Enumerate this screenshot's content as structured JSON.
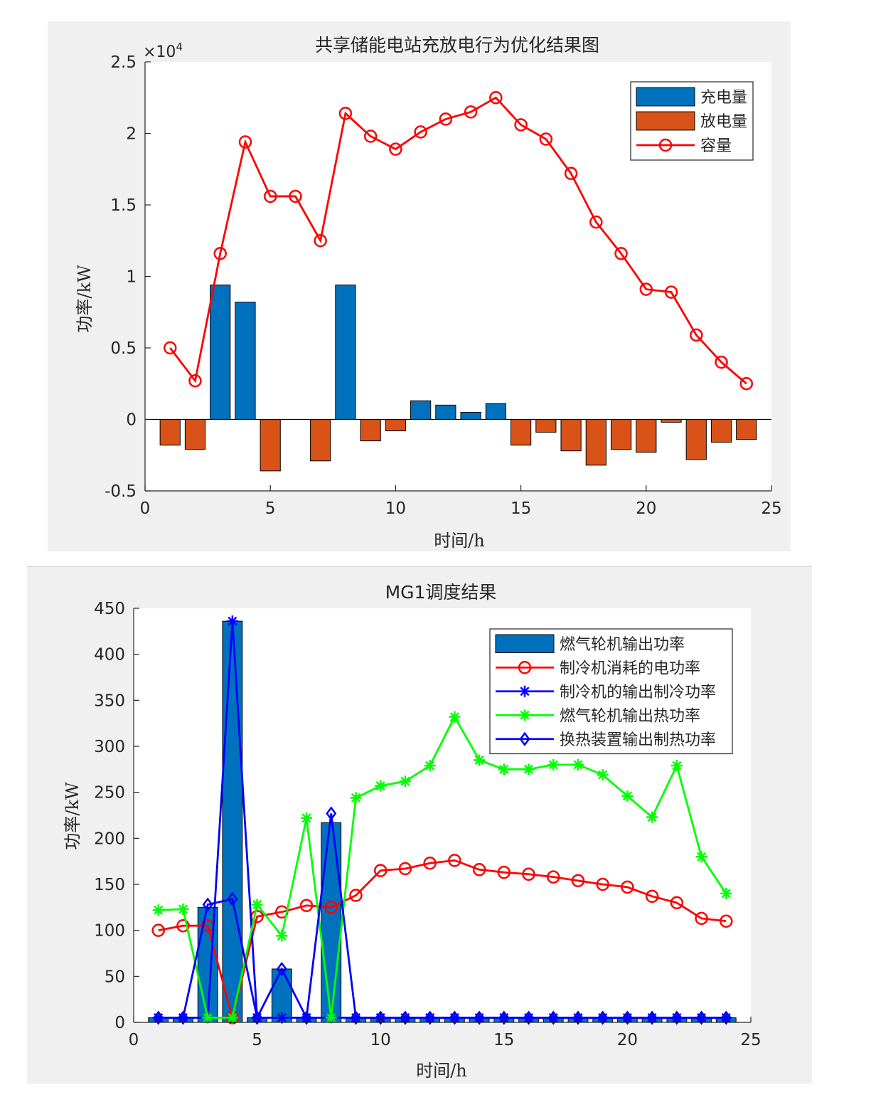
{
  "chart_data": [
    {
      "type": "bar",
      "title": "共享储能电站充放电行为优化结果图",
      "xlabel": "时间/h",
      "ylabel": "功率/kW",
      "y_exponent_label": "×10",
      "y_exponent_power": "4",
      "xlim": [
        0,
        25
      ],
      "ylim": [
        -0.5,
        2.5
      ],
      "xticks": [
        "0",
        "5",
        "10",
        "15",
        "20",
        "25"
      ],
      "yticks": [
        "-0.5",
        "0",
        "0.5",
        "1",
        "1.5",
        "2",
        "2.5"
      ],
      "legend_position": "top-right",
      "x": [
        1,
        2,
        3,
        4,
        5,
        6,
        7,
        8,
        9,
        10,
        11,
        12,
        13,
        14,
        15,
        16,
        17,
        18,
        19,
        20,
        21,
        22,
        23,
        24
      ],
      "series": [
        {
          "name": "充电量",
          "style": "bar",
          "color": "#0072BD",
          "values": [
            0,
            0,
            0.94,
            0.82,
            0,
            0,
            0,
            0.94,
            0,
            0,
            0.13,
            0.1,
            0.05,
            0.11,
            0,
            0,
            0,
            0,
            0,
            0,
            0,
            0,
            0,
            0
          ]
        },
        {
          "name": "放电量",
          "style": "bar",
          "color": "#D95319",
          "values": [
            -0.18,
            -0.21,
            0,
            0,
            -0.36,
            0,
            -0.29,
            0,
            -0.15,
            -0.08,
            0,
            0,
            0,
            0,
            -0.18,
            -0.09,
            -0.22,
            -0.32,
            -0.21,
            -0.23,
            -0.02,
            -0.28,
            -0.16,
            -0.14
          ]
        },
        {
          "name": "容量",
          "style": "line",
          "marker": "circle",
          "color": "#FF0000",
          "values": [
            0.5,
            0.27,
            1.16,
            1.94,
            1.56,
            1.56,
            1.25,
            2.14,
            1.98,
            1.89,
            2.01,
            2.1,
            2.15,
            2.25,
            2.06,
            1.96,
            1.72,
            1.38,
            1.16,
            0.91,
            0.89,
            0.59,
            0.4,
            0.25
          ]
        }
      ]
    },
    {
      "type": "bar",
      "title": "MG1调度结果",
      "xlabel": "时间/h",
      "ylabel": "功率/kW",
      "xlim": [
        0,
        25
      ],
      "ylim": [
        0,
        450
      ],
      "xticks": [
        "0",
        "5",
        "10",
        "15",
        "20",
        "25"
      ],
      "yticks": [
        "0",
        "50",
        "100",
        "150",
        "200",
        "250",
        "300",
        "350",
        "400",
        "450"
      ],
      "legend_position": "top-right",
      "x": [
        1,
        2,
        3,
        4,
        5,
        6,
        7,
        8,
        9,
        10,
        11,
        12,
        13,
        14,
        15,
        16,
        17,
        18,
        19,
        20,
        21,
        22,
        23,
        24
      ],
      "series": [
        {
          "name": "燃气轮机输出功率",
          "style": "bar",
          "color": "#0072BD",
          "values": [
            5,
            5,
            125,
            436,
            5,
            58,
            5,
            217,
            5,
            5,
            5,
            5,
            5,
            5,
            5,
            5,
            5,
            5,
            5,
            5,
            5,
            5,
            5,
            5
          ]
        },
        {
          "name": "制冷机消耗的电功率",
          "style": "line",
          "marker": "circle",
          "color": "#FF0000",
          "values": [
            100,
            105,
            105,
            5,
            115,
            120,
            127,
            125,
            138,
            165,
            167,
            173,
            176,
            166,
            163,
            161,
            158,
            154,
            150,
            147,
            137,
            130,
            113,
            110
          ]
        },
        {
          "name": "制冷机的输出制冷功率",
          "style": "line",
          "marker": "asterisk",
          "color": "#0000FF",
          "values": [
            5,
            5,
            5,
            436,
            5,
            5,
            5,
            5,
            5,
            5,
            5,
            5,
            5,
            5,
            5,
            5,
            5,
            5,
            5,
            5,
            5,
            5,
            5,
            5
          ]
        },
        {
          "name": "燃气轮机输出热功率",
          "style": "line",
          "marker": "asterisk",
          "color": "#00FF00",
          "values": [
            122,
            123,
            5,
            5,
            128,
            94,
            222,
            5,
            244,
            257,
            262,
            279,
            332,
            285,
            275,
            275,
            280,
            280,
            269,
            246,
            223,
            279,
            180,
            140
          ]
        },
        {
          "name": "换热装置输出制热功率",
          "style": "line",
          "marker": "diamond",
          "color": "#0000FF",
          "values": [
            5,
            5,
            128,
            134,
            5,
            58,
            5,
            227,
            5,
            5,
            5,
            5,
            5,
            5,
            5,
            5,
            5,
            5,
            5,
            5,
            5,
            5,
            5,
            5
          ]
        }
      ]
    }
  ]
}
